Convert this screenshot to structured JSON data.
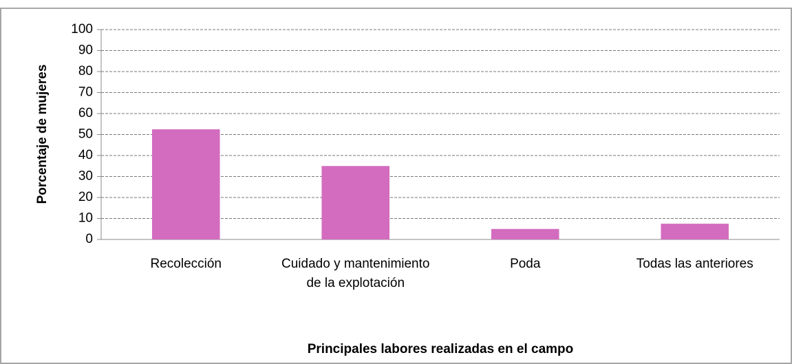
{
  "chart_data": {
    "type": "bar",
    "categories": [
      "Recolección",
      "Cuidado y mantenimiento de la explotación",
      "Poda",
      "Todas las anteriores"
    ],
    "values": [
      52.5,
      35,
      5,
      7.5
    ],
    "color": "#d36cbf",
    "ylim": [
      0,
      100
    ],
    "yticks": [
      0,
      10,
      20,
      30,
      40,
      50,
      60,
      70,
      80,
      90,
      100
    ],
    "grid": true,
    "y_label": "Porcentaje de mujeres",
    "x_label": "Principales labores realizadas en el campo"
  }
}
